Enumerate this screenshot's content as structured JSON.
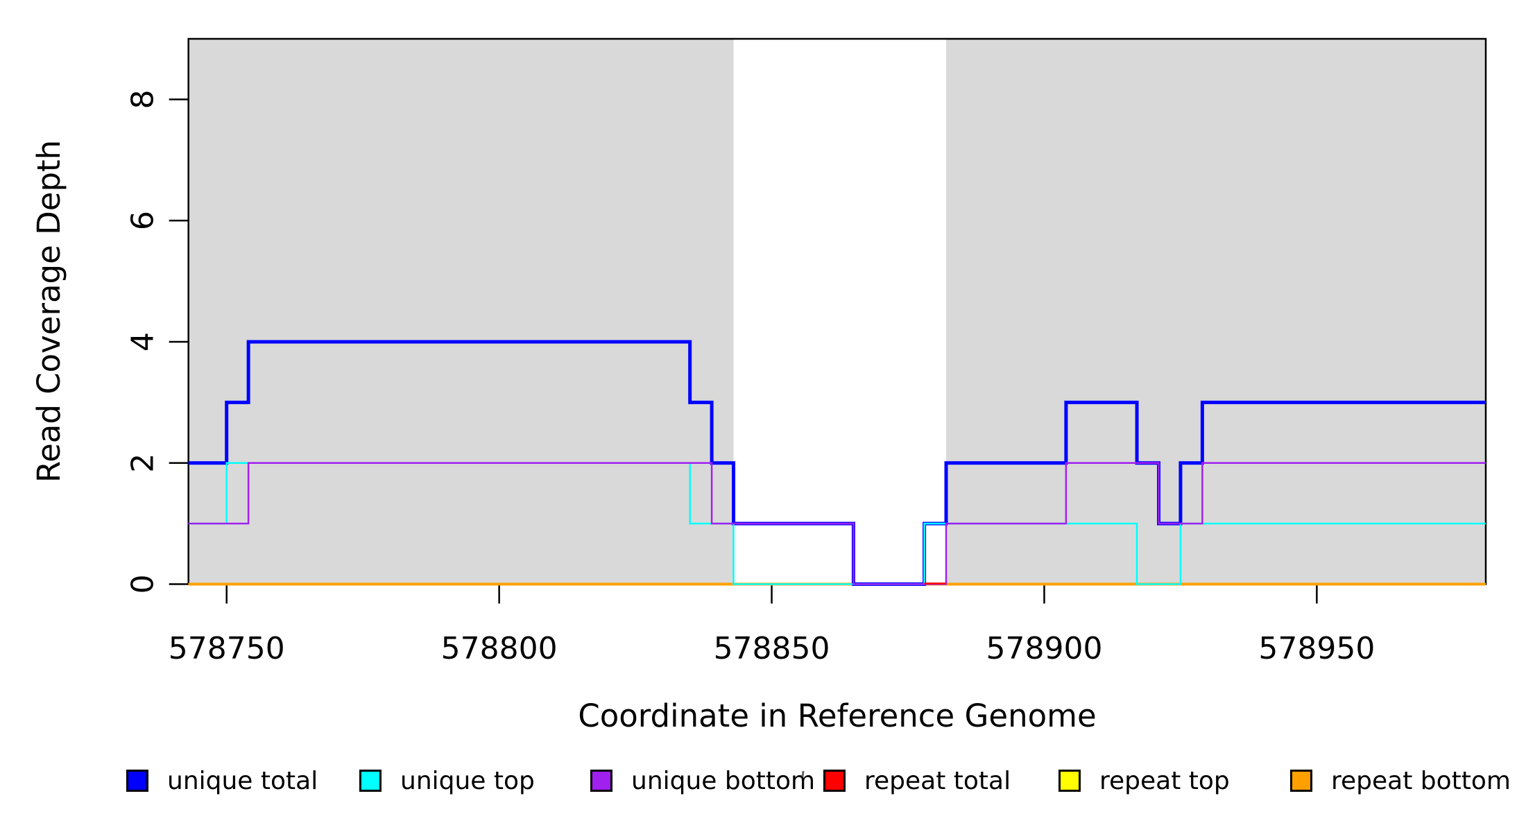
{
  "figure": {
    "x_axis_title": "Coordinate in Reference Genome",
    "y_axis_title": "Read Coverage Depth"
  },
  "legend": {
    "items": [
      {
        "label": "unique total",
        "color": "#0000FF"
      },
      {
        "label": "unique top",
        "color": "#00FFFF"
      },
      {
        "label": "unique bottom",
        "color": "#A020F0"
      },
      {
        "label": "repeat total",
        "color": "#FF0000"
      },
      {
        "label": "repeat top",
        "color": "#FFFF00"
      },
      {
        "label": "repeat bottom",
        "color": "#FFA000"
      }
    ]
  },
  "chart_data": {
    "type": "line",
    "subtype": "step",
    "title": "",
    "xlabel": "Coordinate in Reference Genome",
    "ylabel": "Read Coverage Depth",
    "xlim": [
      578743,
      578981
    ],
    "ylim": [
      0,
      9
    ],
    "x_ticks": [
      578750,
      578800,
      578850,
      578900,
      578950
    ],
    "y_ticks": [
      0,
      2,
      4,
      6,
      8
    ],
    "grid": false,
    "legend_position": "bottom",
    "plot_background": "#FFFFFF",
    "highlight_regions": [
      {
        "name": "left-gray-region",
        "x1": 578743,
        "x2": 578843,
        "color": "#D9D9D9"
      },
      {
        "name": "right-gray-region",
        "x1": 578882,
        "x2": 578981,
        "color": "#D9D9D9"
      }
    ],
    "series": [
      {
        "name": "repeat total",
        "color": "#FF0000",
        "width": 2.5,
        "points": [
          [
            578743,
            0
          ],
          [
            578981,
            0
          ]
        ]
      },
      {
        "name": "repeat top",
        "color": "#FFFF00",
        "width": 2.5,
        "points": [
          [
            578743,
            0
          ],
          [
            578981,
            0
          ]
        ]
      },
      {
        "name": "repeat bottom",
        "color": "#FFA000",
        "width": 4,
        "points": [
          [
            578743,
            0
          ],
          [
            578981,
            0
          ]
        ]
      },
      {
        "name": "unique total",
        "color": "#0000FF",
        "width": 5,
        "points": [
          [
            578743,
            2
          ],
          [
            578750,
            3
          ],
          [
            578754,
            4
          ],
          [
            578835,
            3
          ],
          [
            578839,
            2
          ],
          [
            578843,
            1
          ],
          [
            578865,
            0
          ],
          [
            578878,
            1
          ],
          [
            578882,
            2
          ],
          [
            578904,
            3
          ],
          [
            578917,
            2
          ],
          [
            578921,
            1
          ],
          [
            578925,
            2
          ],
          [
            578929,
            3
          ],
          [
            578981,
            3
          ]
        ]
      },
      {
        "name": "unique top",
        "color": "#00FFFF",
        "width": 2.5,
        "points": [
          [
            578743,
            1
          ],
          [
            578750,
            2
          ],
          [
            578835,
            1
          ],
          [
            578843,
            0
          ],
          [
            578878,
            1
          ],
          [
            578917,
            0
          ],
          [
            578925,
            1
          ],
          [
            578981,
            1
          ]
        ]
      },
      {
        "name": "unique bottom",
        "color": "#A020F0",
        "width": 2.5,
        "points": [
          [
            578743,
            1
          ],
          [
            578754,
            2
          ],
          [
            578839,
            1
          ],
          [
            578865,
            0
          ],
          [
            578882,
            1
          ],
          [
            578904,
            2
          ],
          [
            578921,
            1
          ],
          [
            578929,
            2
          ],
          [
            578981,
            2
          ]
        ]
      }
    ],
    "overlay_segments": [
      {
        "series": "repeat total",
        "color": "#FF0000",
        "width": 2.5,
        "points": [
          [
            578878,
            0
          ],
          [
            578882,
            0
          ]
        ]
      }
    ]
  }
}
